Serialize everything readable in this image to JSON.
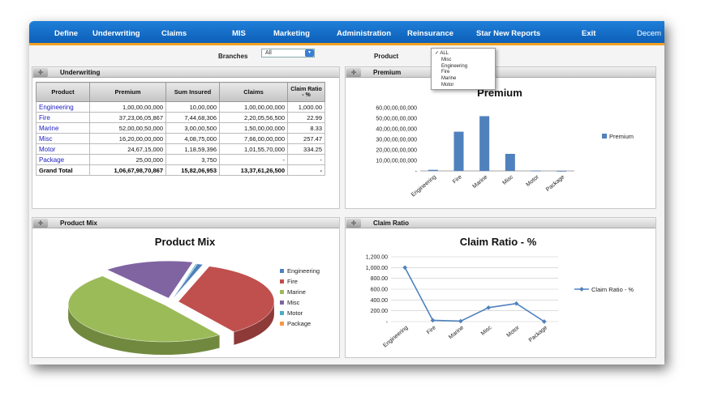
{
  "nav": {
    "items": [
      "Define",
      "Underwriting",
      "Claims",
      "MIS",
      "Marketing",
      "Administration",
      "Reinsurance",
      "Star New Reports",
      "Exit",
      "Decem"
    ]
  },
  "filters": {
    "branches_label": "Branches",
    "branches_value": "All",
    "product_label": "Product",
    "product_options": [
      "ALL",
      "Misc",
      "Engineering",
      "Fire",
      "Marine",
      "Motor"
    ],
    "product_selected": "ALL"
  },
  "underwriting": {
    "title": "Underwriting",
    "headers": [
      "Product",
      "Premium",
      "Sum Insured",
      "Claims",
      "Claim Ratio - %"
    ],
    "rows": [
      [
        "Engineering",
        "1,00,00,00,000",
        "10,00,000",
        "1,00,00,00,000",
        "1,000.00"
      ],
      [
        "Fire",
        "37,23,06,05,867",
        "7,44,68,306",
        "2,20,05,56,500",
        "22.99"
      ],
      [
        "Marine",
        "52,00,00,50,000",
        "3,00,00,500",
        "1,50,00,00,000",
        "8.33"
      ],
      [
        "Misc",
        "16,20,00,00,000",
        "4,08,75,000",
        "7,66,00,00,000",
        "257.47"
      ],
      [
        "Motor",
        "24,67,15,000",
        "1,18,59,396",
        "1,01,55,70,000",
        "334.25"
      ],
      [
        "Package",
        "25,00,000",
        "3,750",
        "-",
        "-"
      ],
      [
        "Grand Total",
        "1,06,67,98,70,867",
        "15,82,06,953",
        "13,37,61,26,500",
        "-"
      ]
    ]
  },
  "premium_panel": {
    "title": "Premium"
  },
  "product_mix_panel": {
    "title": "Product Mix"
  },
  "claim_ratio_panel": {
    "title": "Claim Ratio"
  },
  "colors": {
    "engineering": "#4f81bd",
    "fire": "#c0504d",
    "marine": "#9bbb59",
    "misc": "#8064a2",
    "motor": "#4bacc6",
    "package": "#f79646"
  },
  "chart_data": [
    {
      "type": "bar",
      "title": "Premium",
      "categories": [
        "Engineering",
        "Fire",
        "Marine",
        "Misc",
        "Motor",
        "Package"
      ],
      "series": [
        {
          "name": "Premium",
          "values": [
            1000000000,
            37230605867,
            52000050000,
            16200000000,
            246715000,
            2500000
          ]
        }
      ],
      "yticks": [
        "60,00,00,00,000",
        "50,00,00,00,000",
        "40,00,00,00,000",
        "30,00,00,00,000",
        "20,00,00,00,000",
        "10,00,00,00,000",
        "-"
      ],
      "ylim": [
        0,
        60000000000
      ],
      "legend": "right"
    },
    {
      "type": "pie",
      "title": "Product Mix",
      "categories": [
        "Engineering",
        "Fire",
        "Marine",
        "Misc",
        "Motor",
        "Package"
      ],
      "values": [
        1000000000,
        37230605867,
        52000050000,
        16200000000,
        246715000,
        2500000
      ],
      "legend": "right"
    },
    {
      "type": "line",
      "title": "Claim Ratio - %",
      "categories": [
        "Engineering",
        "Fire",
        "Marine",
        "Misc",
        "Motor",
        "Package"
      ],
      "series": [
        {
          "name": "Claim Ratio - %",
          "values": [
            1000,
            22.99,
            8.33,
            257.47,
            334.25,
            0
          ]
        }
      ],
      "yticks": [
        "1,200.00",
        "1,000.00",
        "800.00",
        "600.00",
        "400.00",
        "200.00",
        "-"
      ],
      "ylim": [
        0,
        1200
      ],
      "legend": "right"
    }
  ]
}
